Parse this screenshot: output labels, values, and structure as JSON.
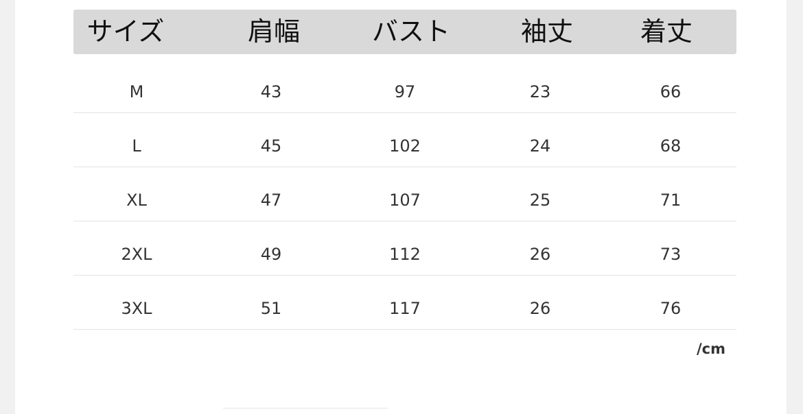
{
  "table": {
    "headers": [
      "サイズ",
      "肩幅",
      "バスト",
      "袖丈",
      "着丈"
    ],
    "rows": [
      [
        "M",
        "43",
        "97",
        "23",
        "66"
      ],
      [
        "L",
        "45",
        "102",
        "24",
        "68"
      ],
      [
        "XL",
        "47",
        "107",
        "25",
        "71"
      ],
      [
        "2XL",
        "49",
        "112",
        "26",
        "73"
      ],
      [
        "3XL",
        "51",
        "117",
        "26",
        "76"
      ]
    ],
    "unit": "/cm"
  },
  "colors": {
    "header_bg": "#d9d9d9",
    "text": "#333333"
  }
}
